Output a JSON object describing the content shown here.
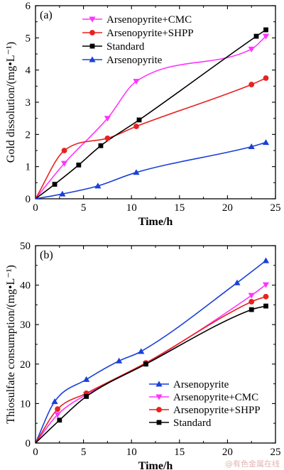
{
  "watermark": "@有色金属在线",
  "chart_data": [
    {
      "type": "line",
      "panel_label": "(a)",
      "xlabel": "Time/h",
      "ylabel": "Gold dissolution/(mg•L⁻¹)",
      "xlim": [
        0,
        25
      ],
      "ylim": [
        0,
        6
      ],
      "xticks": [
        0,
        5,
        10,
        15,
        20,
        25
      ],
      "yticks": [
        0,
        1,
        2,
        3,
        4,
        5,
        6
      ],
      "grid": false,
      "legend_position": "top-left",
      "series": [
        {
          "name": "Arsenopyrite+CMC",
          "color": "#ff33ff",
          "marker": "triangle-down",
          "x": [
            0,
            3,
            7.5,
            10.5,
            22.5,
            24
          ],
          "y": [
            0,
            1.1,
            2.5,
            3.65,
            4.65,
            5.05
          ],
          "curve_x": [
            0,
            3,
            7.5,
            10.5,
            22.5,
            24
          ]
        },
        {
          "name": "Arsenopyrite+SHPP",
          "color": "#e8211f",
          "marker": "circle",
          "x": [
            0,
            3,
            7.5,
            10.5,
            22.5,
            24
          ],
          "y": [
            0,
            1.5,
            1.88,
            2.25,
            3.55,
            3.75
          ]
        },
        {
          "name": "Standard",
          "color": "#000000",
          "marker": "square",
          "x": [
            0,
            2,
            4.5,
            6.8,
            10.8,
            23,
            24
          ],
          "y": [
            0,
            0.45,
            1.05,
            1.65,
            2.45,
            5.05,
            5.25
          ]
        },
        {
          "name": "Arsenopyrite",
          "color": "#1a3fd9",
          "marker": "triangle-up",
          "x": [
            0,
            2.8,
            6.5,
            10.5,
            22.5,
            24
          ],
          "y": [
            0,
            0.15,
            0.4,
            0.82,
            1.62,
            1.75
          ]
        }
      ]
    },
    {
      "type": "line",
      "panel_label": "(b)",
      "xlabel": "Time/h",
      "ylabel": "Thiosulfate consumption/(mg•L⁻¹)",
      "xlim": [
        0,
        25
      ],
      "ylim": [
        0,
        50
      ],
      "xticks": [
        0,
        5,
        10,
        15,
        20,
        25
      ],
      "yticks": [
        0,
        10,
        20,
        30,
        40,
        50
      ],
      "grid": false,
      "legend_position": "bottom-right",
      "series": [
        {
          "name": "Arsenopyrite",
          "color": "#1a3fd9",
          "marker": "triangle-up",
          "x": [
            0,
            2,
            5.3,
            8.7,
            11,
            21,
            24
          ],
          "y": [
            0,
            10.5,
            16.1,
            20.8,
            23.2,
            40.6,
            46.2
          ]
        },
        {
          "name": "Arsenopyrite+CMC",
          "color": "#ff33ff",
          "marker": "triangle-down",
          "x": [
            0,
            2.3,
            5.3,
            11.5,
            22.5,
            24
          ],
          "y": [
            0,
            7.2,
            12.3,
            20.1,
            37.4,
            40.1
          ]
        },
        {
          "name": "Arsenopyrite+SHPP",
          "color": "#e8211f",
          "marker": "circle",
          "x": [
            0,
            2.3,
            5.3,
            11.5,
            22.5,
            24
          ],
          "y": [
            0,
            8.6,
            12.6,
            20.3,
            35.8,
            37.1
          ]
        },
        {
          "name": "Standard",
          "color": "#000000",
          "marker": "square",
          "x": [
            0,
            2.5,
            5.3,
            11.5,
            22.5,
            24
          ],
          "y": [
            0,
            5.8,
            11.8,
            20.0,
            33.8,
            34.7
          ]
        }
      ]
    }
  ]
}
